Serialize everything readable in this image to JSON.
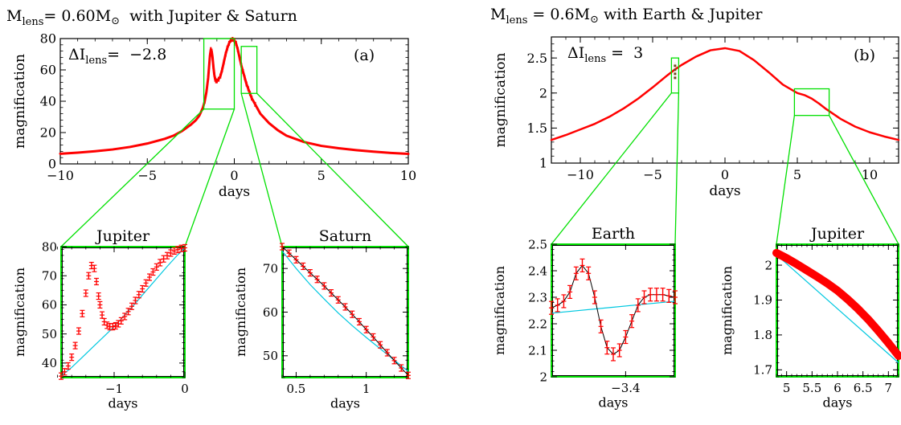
{
  "colors": {
    "data": "#ff0000",
    "model": "#00c8e0",
    "zoom_box": "#00e000",
    "axes": "#000000",
    "trace": "#000000"
  },
  "chart_data": [
    {
      "id": "a_main",
      "type": "line",
      "title_main": "M",
      "title_sub": "lens",
      "title_rest": "= 0.60M",
      "title_symbol": "⊙",
      "title_tail": "  with Jupiter & Saturn",
      "annot_main": "ΔI",
      "annot_sub": "lens",
      "annot_rest": "=  −2.8",
      "panel_label": "(a)",
      "xlabel": "days",
      "ylabel": "magnification",
      "xlim": [
        -10,
        10
      ],
      "ylim": [
        0,
        80
      ],
      "xticks": [
        -10,
        -5,
        0,
        5,
        10
      ],
      "xtick_labels": [
        "−10",
        "−5",
        "0",
        "5",
        "10"
      ],
      "yticks": [
        0,
        20,
        40,
        60,
        80
      ],
      "ytick_labels": [
        "0",
        "20",
        "40",
        "60",
        "80"
      ],
      "zoom_boxes": [
        {
          "x": [
            -1.75,
            0
          ],
          "y": [
            35,
            80
          ]
        },
        {
          "x": [
            0.4,
            1.3
          ],
          "y": [
            45,
            75
          ]
        }
      ],
      "series": [
        {
          "x": [
            -10,
            -9,
            -8,
            -7,
            -6,
            -5,
            -4,
            -3.5,
            -3,
            -2.5,
            -2.2,
            -2,
            -1.8,
            -1.7,
            -1.6,
            -1.5,
            -1.45,
            -1.4,
            -1.35,
            -1.3,
            -1.25,
            -1.2,
            -1.15,
            -1.1,
            -1.05,
            -1.0,
            -0.9,
            -0.8,
            -0.7,
            -0.6,
            -0.5,
            -0.4,
            -0.3,
            -0.2,
            -0.1,
            0,
            0.1,
            0.2,
            0.3,
            0.4,
            0.5,
            0.6,
            0.7,
            0.8,
            0.9,
            1.0,
            1.2,
            1.5,
            2,
            2.5,
            3,
            4,
            5,
            6,
            7,
            8,
            9,
            10
          ],
          "y": [
            6.5,
            7.2,
            8.1,
            9.2,
            10.8,
            13,
            16,
            18,
            21,
            25,
            28,
            31,
            36,
            40,
            46,
            55,
            62,
            69,
            73,
            72,
            68,
            62,
            57,
            54,
            53,
            53,
            54,
            56,
            60,
            65,
            70,
            74,
            77,
            79,
            79.5,
            79,
            77,
            73,
            68,
            63,
            59,
            55,
            51,
            48,
            45,
            42,
            38,
            32,
            26,
            21.5,
            18,
            14,
            11.5,
            10,
            8.8,
            7.8,
            7,
            6.4
          ]
        }
      ]
    },
    {
      "id": "a_jup",
      "type": "line",
      "title": "Jupiter",
      "xlabel": "days",
      "ylabel": "magnification",
      "xlim": [
        -1.75,
        0
      ],
      "ylim": [
        35,
        80
      ],
      "xticks": [
        -1,
        0
      ],
      "xtick_labels": [
        "−1",
        "0"
      ],
      "yticks": [
        40,
        50,
        60,
        70,
        80
      ],
      "ytick_labels": [
        "40",
        "50",
        "60",
        "70",
        "80"
      ],
      "series": [
        {
          "name": "data",
          "x": [
            -1.75,
            -1.7,
            -1.65,
            -1.6,
            -1.55,
            -1.5,
            -1.45,
            -1.4,
            -1.36,
            -1.32,
            -1.28,
            -1.25,
            -1.22,
            -1.2,
            -1.17,
            -1.14,
            -1.1,
            -1.06,
            -1.02,
            -0.98,
            -0.94,
            -0.9,
            -0.85,
            -0.8,
            -0.75,
            -0.7,
            -0.65,
            -0.6,
            -0.55,
            -0.5,
            -0.45,
            -0.4,
            -0.35,
            -0.3,
            -0.25,
            -0.2,
            -0.15,
            -0.1,
            -0.05,
            0
          ],
          "y": [
            35.5,
            37,
            39,
            42,
            46,
            51,
            57,
            64,
            70,
            73.5,
            72.5,
            68,
            63,
            60,
            56.5,
            54.2,
            53,
            52.5,
            52.5,
            52.8,
            53.5,
            54.5,
            56,
            57.7,
            59.5,
            61.5,
            63.5,
            65.5,
            67.5,
            69.5,
            71.3,
            73,
            74.5,
            75.8,
            76.9,
            77.8,
            78.5,
            79,
            79.4,
            79.6
          ]
        },
        {
          "name": "model",
          "x": [
            -1.75,
            -1.6,
            -1.45,
            -1.3,
            -1.15,
            -1.0,
            -0.85,
            -0.7,
            -0.55,
            -0.4,
            -0.25,
            -0.1,
            0
          ],
          "y": [
            35.5,
            38.5,
            42,
            45.5,
            49,
            52.5,
            56.5,
            60.5,
            64.8,
            69,
            73.2,
            77.2,
            79.5
          ]
        }
      ]
    },
    {
      "id": "a_sat",
      "type": "line",
      "title": "Saturn",
      "xlabel": "days",
      "ylabel": "magnification",
      "xlim": [
        0.4,
        1.3
      ],
      "ylim": [
        45,
        75
      ],
      "xticks": [
        0.5,
        1
      ],
      "xtick_labels": [
        "0.5",
        "1"
      ],
      "yticks": [
        50,
        60,
        70
      ],
      "ytick_labels": [
        "50",
        "60",
        "70"
      ],
      "series": [
        {
          "name": "data",
          "x": [
            0.4,
            0.45,
            0.5,
            0.55,
            0.6,
            0.65,
            0.7,
            0.75,
            0.8,
            0.85,
            0.9,
            0.95,
            1.0,
            1.05,
            1.1,
            1.15,
            1.2,
            1.25,
            1.3
          ],
          "y": [
            75,
            73.5,
            72,
            70.5,
            69,
            67.5,
            66,
            64.4,
            62.8,
            61.2,
            59.5,
            57.8,
            56,
            54.3,
            52.5,
            50.7,
            48.9,
            47.2,
            45.5
          ]
        },
        {
          "name": "model",
          "x": [
            0.4,
            0.5,
            0.6,
            0.7,
            0.8,
            0.9,
            1.0,
            1.1,
            1.2,
            1.3
          ],
          "y": [
            74,
            70,
            66.3,
            63,
            59.8,
            56.9,
            54.2,
            51.6,
            49,
            46.4
          ]
        }
      ]
    },
    {
      "id": "b_main",
      "type": "line",
      "title_main": "M",
      "title_sub": "lens",
      "title_rest": " = 0.6M",
      "title_symbol": "⊙",
      "title_tail": " with Earth & Jupiter",
      "annot_main": "ΔI",
      "annot_sub": "lens",
      "annot_rest": " =  3",
      "panel_label": "(b)",
      "xlabel": "days",
      "ylabel": "magnification",
      "xlim": [
        -12,
        12
      ],
      "ylim": [
        1,
        2.8
      ],
      "xticks": [
        -10,
        -5,
        0,
        5,
        10
      ],
      "xtick_labels": [
        "−10",
        "−5",
        "0",
        "5",
        "10"
      ],
      "yticks": [
        1,
        1.5,
        2,
        2.5
      ],
      "ytick_labels": [
        "1",
        "1.5",
        "2",
        "2.5"
      ],
      "zoom_boxes": [
        {
          "x": [
            -3.7,
            -3.2
          ],
          "y": [
            2,
            2.5
          ]
        },
        {
          "x": [
            4.8,
            7.2
          ],
          "y": [
            1.68,
            2.06
          ]
        }
      ],
      "series": [
        {
          "x": [
            -12,
            -11,
            -10,
            -9,
            -8,
            -7,
            -6,
            -5,
            -4,
            -3.5,
            -3,
            -2,
            -1,
            0,
            1,
            2,
            3,
            4,
            5,
            5.5,
            6,
            6.5,
            7,
            8,
            9,
            10,
            11,
            12
          ],
          "y": [
            1.33,
            1.4,
            1.48,
            1.56,
            1.66,
            1.78,
            1.92,
            2.08,
            2.25,
            2.33,
            2.4,
            2.52,
            2.61,
            2.64,
            2.6,
            2.47,
            2.3,
            2.12,
            2.0,
            1.97,
            1.92,
            1.85,
            1.77,
            1.63,
            1.52,
            1.44,
            1.38,
            1.33
          ]
        }
      ]
    },
    {
      "id": "b_earth",
      "type": "line",
      "title": "Earth",
      "xlabel": "days",
      "ylabel": "magnification",
      "xlim": [
        -3.7,
        -3.2
      ],
      "ylim": [
        2,
        2.5
      ],
      "xticks": [
        -3.4
      ],
      "xtick_labels": [
        "−3.4"
      ],
      "yticks": [
        2,
        2.1,
        2.2,
        2.3,
        2.4,
        2.5
      ],
      "ytick_labels": [
        "2",
        "2.1",
        "2.2",
        "2.3",
        "2.4",
        "2.5"
      ],
      "series": [
        {
          "name": "data",
          "x": [
            -3.7,
            -3.675,
            -3.65,
            -3.625,
            -3.6,
            -3.575,
            -3.55,
            -3.525,
            -3.5,
            -3.475,
            -3.45,
            -3.425,
            -3.4,
            -3.375,
            -3.35,
            -3.325,
            -3.3,
            -3.275,
            -3.25,
            -3.225,
            -3.2
          ],
          "y": [
            2.26,
            2.27,
            2.285,
            2.32,
            2.39,
            2.42,
            2.39,
            2.3,
            2.19,
            2.11,
            2.085,
            2.1,
            2.15,
            2.21,
            2.27,
            2.3,
            2.31,
            2.31,
            2.31,
            2.305,
            2.3
          ]
        },
        {
          "name": "model",
          "x": [
            -3.7,
            -3.2
          ],
          "y": [
            2.24,
            2.285
          ]
        }
      ]
    },
    {
      "id": "b_jup",
      "type": "line",
      "title": "Jupiter",
      "xlabel": "days",
      "ylabel": "magnification",
      "xlim": [
        4.8,
        7.2
      ],
      "ylim": [
        1.68,
        2.06
      ],
      "xticks": [
        5,
        5.5,
        6,
        6.5,
        7
      ],
      "xtick_labels": [
        "5",
        "5.5",
        "6",
        "6.5",
        "7"
      ],
      "yticks": [
        1.7,
        1.8,
        1.9,
        2
      ],
      "ytick_labels": [
        "1.7",
        "1.8",
        "1.9",
        "2"
      ],
      "series": [
        {
          "name": "data",
          "x": [
            4.8,
            5.0,
            5.2,
            5.4,
            5.6,
            5.8,
            6.0,
            6.2,
            6.4,
            6.6,
            6.8,
            7.0,
            7.2
          ],
          "y": [
            2.035,
            2.02,
            2.003,
            1.985,
            1.967,
            1.948,
            1.927,
            1.902,
            1.875,
            1.845,
            1.812,
            1.777,
            1.74
          ]
        },
        {
          "name": "model",
          "x": [
            4.8,
            7.2
          ],
          "y": [
            2.03,
            1.72
          ]
        }
      ]
    }
  ]
}
